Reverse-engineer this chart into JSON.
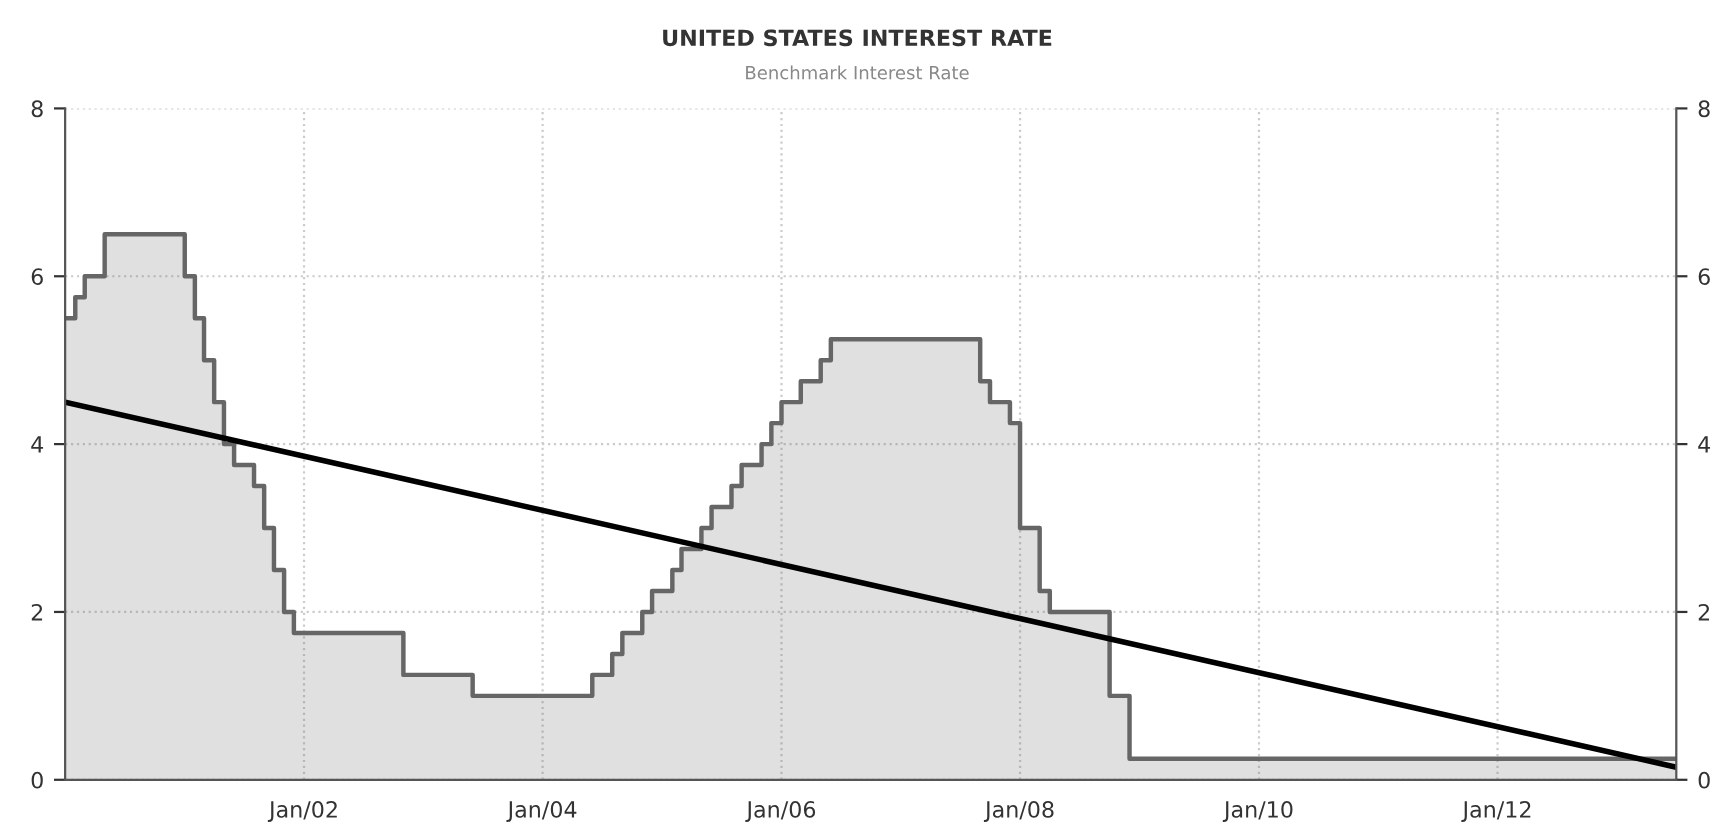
{
  "chart_data": {
    "type": "area",
    "title": "UNITED STATES INTEREST RATE",
    "subtitle": "Benchmark Interest Rate",
    "series": [
      {
        "color": "#666666",
        "x": [
          "2000-01",
          "2000-02",
          "2000-02",
          "2000-03",
          "2000-03",
          "2000-05",
          "2000-05",
          "2001-01",
          "2001-01",
          "2001-02",
          "2001-02",
          "2001-03",
          "2001-03",
          "2001-04",
          "2001-04",
          "2001-05",
          "2001-05",
          "2001-06",
          "2001-06",
          "2001-08",
          "2001-08",
          "2001-09",
          "2001-09",
          "2001-10",
          "2001-10",
          "2001-11",
          "2001-11",
          "2001-12",
          "2001-12",
          "2002-11",
          "2002-11",
          "2003-06",
          "2003-06",
          "2004-06",
          "2004-06",
          "2004-08",
          "2004-08",
          "2004-09",
          "2004-09",
          "2004-11",
          "2004-11",
          "2004-12",
          "2004-12",
          "2005-02",
          "2005-02",
          "2005-03",
          "2005-03",
          "2005-05",
          "2005-05",
          "2005-06",
          "2005-06",
          "2005-08",
          "2005-08",
          "2005-09",
          "2005-09",
          "2005-11",
          "2005-11",
          "2005-12",
          "2005-12",
          "2006-01",
          "2006-01",
          "2006-03",
          "2006-03",
          "2006-05",
          "2006-05",
          "2006-06",
          "2006-06",
          "2007-09",
          "2007-09",
          "2007-10",
          "2007-10",
          "2007-12",
          "2007-12",
          "2008-01",
          "2008-01",
          "2008-03",
          "2008-03",
          "2008-04",
          "2008-04",
          "2008-10",
          "2008-10",
          "2008-12",
          "2008-12",
          "2013-07"
        ],
        "values": [
          5.5,
          5.5,
          5.75,
          5.75,
          6.0,
          6.0,
          6.5,
          6.5,
          6.0,
          6.0,
          5.5,
          5.5,
          5.0,
          5.0,
          4.5,
          4.5,
          4.0,
          4.0,
          3.75,
          3.75,
          3.5,
          3.5,
          3.0,
          3.0,
          2.5,
          2.5,
          2.0,
          2.0,
          1.75,
          1.75,
          1.25,
          1.25,
          1.0,
          1.0,
          1.25,
          1.25,
          1.5,
          1.5,
          1.75,
          1.75,
          2.0,
          2.0,
          2.25,
          2.25,
          2.5,
          2.5,
          2.75,
          2.75,
          3.0,
          3.0,
          3.25,
          3.25,
          3.5,
          3.5,
          3.75,
          3.75,
          4.0,
          4.0,
          4.25,
          4.25,
          4.5,
          4.5,
          4.75,
          4.75,
          5.0,
          5.0,
          5.25,
          5.25,
          4.75,
          4.75,
          4.5,
          4.5,
          4.25,
          4.25,
          3.0,
          3.0,
          2.25,
          2.25,
          2.0,
          2.0,
          1.0,
          1.0,
          0.25,
          0.25
        ]
      },
      {
        "type": "line",
        "color": "#000000",
        "x": [
          "2000-01",
          "2013-07"
        ],
        "values": [
          4.5,
          0.15
        ]
      }
    ],
    "xlim": [
      "2000-01",
      "2013-07"
    ],
    "xticks": [
      {
        "value": "2002-01",
        "label": "Jan/02"
      },
      {
        "value": "2004-01",
        "label": "Jan/04"
      },
      {
        "value": "2006-01",
        "label": "Jan/06"
      },
      {
        "value": "2008-01",
        "label": "Jan/08"
      },
      {
        "value": "2010-01",
        "label": "Jan/10"
      },
      {
        "value": "2012-01",
        "label": "Jan/12"
      }
    ],
    "ylim": [
      0,
      8
    ],
    "yticks": [
      0,
      2,
      4,
      6,
      8
    ],
    "y2lim": [
      0,
      8
    ],
    "y2ticks": [
      0,
      2,
      4,
      6,
      8
    ],
    "grid": true,
    "legend": false
  }
}
